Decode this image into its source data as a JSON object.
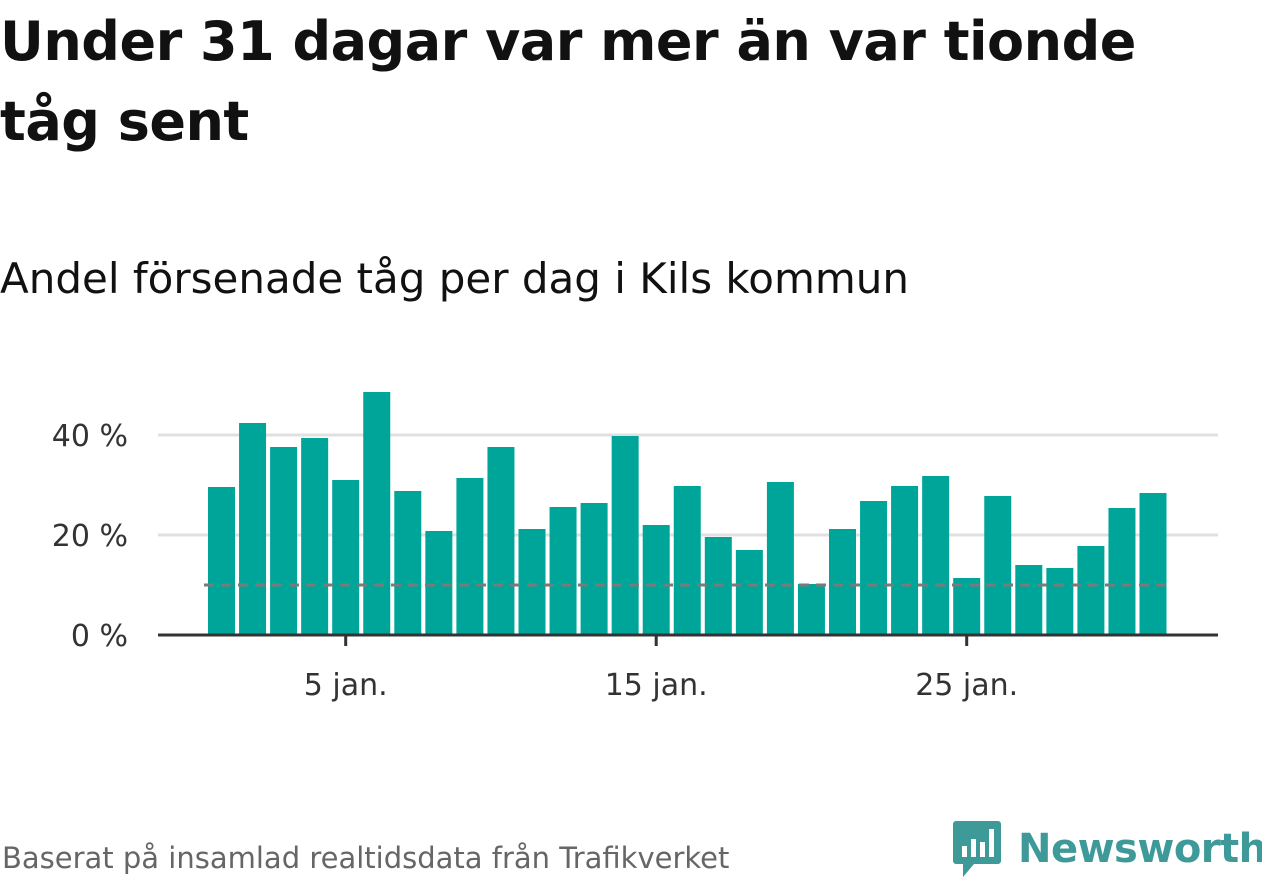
{
  "title": "Under 31 dagar var mer än var tionde tåg sent",
  "subtitle": "Andel försenade tåg per dag i Kils kommun",
  "source": "Baserat på insamlad realtidsdata från Trafikverket",
  "brand": {
    "name": "Newsworthy",
    "icon": "newsworthy-logo-icon"
  },
  "colors": {
    "bar": "#00a59a",
    "gridline": "#e0e0e0",
    "axis": "#333333",
    "reference_line": "#7a7a7a",
    "brand": "#3d9a98"
  },
  "chart_data": {
    "type": "bar",
    "categories": [
      "1 jan.",
      "2 jan.",
      "3 jan.",
      "4 jan.",
      "5 jan.",
      "6 jan.",
      "7 jan.",
      "8 jan.",
      "9 jan.",
      "10 jan.",
      "11 jan.",
      "12 jan.",
      "13 jan.",
      "14 jan.",
      "15 jan.",
      "16 jan.",
      "17 jan.",
      "18 jan.",
      "19 jan.",
      "20 jan.",
      "21 jan.",
      "22 jan.",
      "23 jan.",
      "24 jan.",
      "25 jan.",
      "26 jan.",
      "27 jan.",
      "28 jan.",
      "29 jan.",
      "30 jan.",
      "31 jan."
    ],
    "values": [
      29.6,
      42.4,
      37.6,
      39.4,
      31.0,
      48.6,
      28.8,
      20.8,
      31.4,
      37.6,
      21.2,
      25.6,
      26.4,
      39.8,
      22.0,
      29.8,
      19.6,
      17.0,
      30.6,
      10.2,
      21.2,
      26.8,
      29.8,
      31.8,
      11.4,
      27.8,
      14.0,
      13.4,
      17.8,
      25.4,
      28.4
    ],
    "reference_value": 10,
    "ylim": [
      0,
      50
    ],
    "y_ticks": [
      0,
      20,
      40
    ],
    "y_tick_labels": [
      "0 %",
      "20 %",
      "40 %"
    ],
    "x_ticks": [
      5,
      15,
      25
    ],
    "x_tick_labels": [
      "5 jan.",
      "15 jan.",
      "25 jan."
    ],
    "grid": true,
    "legend": "none"
  }
}
